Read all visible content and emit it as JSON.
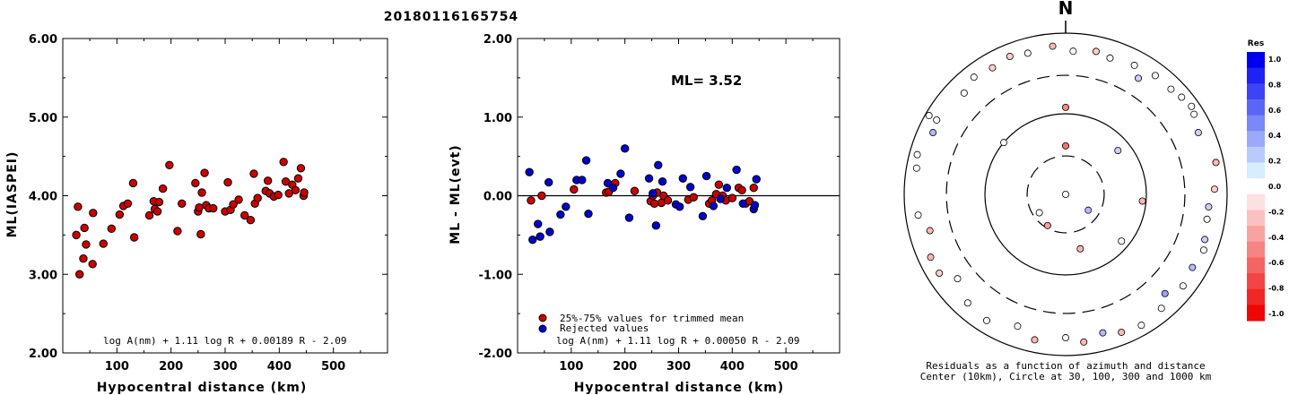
{
  "title": "20180116165754",
  "chart_data": [
    {
      "type": "scatter",
      "xlabel": "Hypocentral distance (km)",
      "ylabel": "ML(IASPEI)",
      "xlim": [
        0,
        600
      ],
      "ylim": [
        2.0,
        6.0
      ],
      "xticks": [
        "100",
        "200",
        "300",
        "400",
        "500"
      ],
      "yticks": [
        "2.00",
        "3.00",
        "4.00",
        "5.00",
        "6.00"
      ],
      "formula": "log A(nm) + 1.11 log R + 0.00189 R - 2.09",
      "color": "#cc0000",
      "points": [
        [
          25,
          3.5
        ],
        [
          28,
          3.86
        ],
        [
          31,
          3.0
        ],
        [
          38,
          3.2
        ],
        [
          40,
          3.59
        ],
        [
          43,
          3.38
        ],
        [
          55,
          3.13
        ],
        [
          56,
          3.78
        ],
        [
          75,
          3.39
        ],
        [
          90,
          3.58
        ],
        [
          105,
          3.76
        ],
        [
          112,
          3.87
        ],
        [
          120,
          3.9
        ],
        [
          130,
          4.16
        ],
        [
          132,
          3.47
        ],
        [
          160,
          3.75
        ],
        [
          168,
          3.93
        ],
        [
          170,
          3.83
        ],
        [
          175,
          3.8
        ],
        [
          178,
          3.92
        ],
        [
          185,
          4.09
        ],
        [
          197,
          4.39
        ],
        [
          212,
          3.55
        ],
        [
          220,
          3.9
        ],
        [
          245,
          4.16
        ],
        [
          250,
          3.8
        ],
        [
          252,
          3.85
        ],
        [
          255,
          3.51
        ],
        [
          257,
          4.04
        ],
        [
          262,
          4.29
        ],
        [
          265,
          3.88
        ],
        [
          270,
          3.84
        ],
        [
          278,
          3.84
        ],
        [
          300,
          3.8
        ],
        [
          305,
          4.17
        ],
        [
          310,
          3.82
        ],
        [
          315,
          3.89
        ],
        [
          325,
          3.95
        ],
        [
          336,
          3.75
        ],
        [
          347,
          3.69
        ],
        [
          353,
          4.28
        ],
        [
          355,
          3.9
        ],
        [
          360,
          3.97
        ],
        [
          375,
          4.06
        ],
        [
          379,
          4.19
        ],
        [
          382,
          4.03
        ],
        [
          390,
          3.99
        ],
        [
          398,
          4.01
        ],
        [
          408,
          4.43
        ],
        [
          412,
          4.18
        ],
        [
          418,
          4.03
        ],
        [
          424,
          4.14
        ],
        [
          430,
          4.07
        ],
        [
          435,
          4.22
        ],
        [
          440,
          4.35
        ],
        [
          445,
          4.0
        ],
        [
          446,
          4.04
        ]
      ]
    },
    {
      "type": "scatter",
      "xlabel": "Hypocentral distance (km)",
      "ylabel": "ML - ML(evt)",
      "xlim": [
        0,
        600
      ],
      "ylim": [
        -2.0,
        2.0
      ],
      "xticks": [
        "100",
        "200",
        "300",
        "400",
        "500"
      ],
      "yticks": [
        "-2.00",
        "-1.00",
        "0.00",
        "1.00",
        "2.00"
      ],
      "annotation": "ML= 3.52",
      "formula": "log A(nm) + 1.11 log R + 0.00050 R - 2.09",
      "legend": [
        "25%-75% values for trimmed mean",
        "Rejected values"
      ],
      "series": [
        {
          "name": "25%-75% values for trimmed mean",
          "color": "#cc0000",
          "points": [
            [
              25,
              -0.06
            ],
            [
              45,
              0.0
            ],
            [
              105,
              0.08
            ],
            [
              165,
              0.04
            ],
            [
              170,
              0.05
            ],
            [
              182,
              0.16
            ],
            [
              218,
              0.06
            ],
            [
              248,
              -0.07
            ],
            [
              252,
              0.0
            ],
            [
              255,
              -0.1
            ],
            [
              260,
              0.04
            ],
            [
              268,
              -0.09
            ],
            [
              272,
              0.0
            ],
            [
              280,
              -0.06
            ],
            [
              318,
              -0.05
            ],
            [
              328,
              -0.02
            ],
            [
              357,
              -0.1
            ],
            [
              362,
              -0.06
            ],
            [
              370,
              0.02
            ],
            [
              375,
              0.14
            ],
            [
              382,
              0.0
            ],
            [
              388,
              -0.06
            ],
            [
              400,
              -0.03
            ],
            [
              412,
              0.1
            ],
            [
              418,
              0.07
            ],
            [
              425,
              -0.1
            ],
            [
              432,
              -0.07
            ],
            [
              440,
              0.1
            ]
          ]
        },
        {
          "name": "Rejected values",
          "color": "#0000cc",
          "points": [
            [
              22,
              0.3
            ],
            [
              28,
              -0.56
            ],
            [
              38,
              -0.36
            ],
            [
              42,
              -0.52
            ],
            [
              58,
              0.17
            ],
            [
              60,
              -0.46
            ],
            [
              80,
              -0.24
            ],
            [
              90,
              -0.14
            ],
            [
              110,
              0.2
            ],
            [
              120,
              0.2
            ],
            [
              128,
              0.45
            ],
            [
              132,
              -0.23
            ],
            [
              168,
              0.16
            ],
            [
              178,
              0.1
            ],
            [
              192,
              0.28
            ],
            [
              200,
              0.6
            ],
            [
              208,
              -0.28
            ],
            [
              245,
              0.22
            ],
            [
              252,
              0.03
            ],
            [
              258,
              -0.38
            ],
            [
              262,
              0.39
            ],
            [
              270,
              0.18
            ],
            [
              295,
              -0.11
            ],
            [
              302,
              -0.14
            ],
            [
              308,
              0.22
            ],
            [
              322,
              0.11
            ],
            [
              345,
              -0.26
            ],
            [
              352,
              0.25
            ],
            [
              365,
              -0.13
            ],
            [
              378,
              -0.04
            ],
            [
              390,
              0.1
            ],
            [
              408,
              0.33
            ],
            [
              420,
              -0.1
            ],
            [
              440,
              -0.17
            ],
            [
              442,
              -0.12
            ],
            [
              445,
              0.21
            ]
          ]
        }
      ]
    },
    {
      "type": "scatter",
      "subtype": "polar residual plot",
      "north_label": "N",
      "caption": "Residuals as a function of azimuth and distance",
      "caption2": "Center (10km), Circle at 30, 100, 300 and 1000 km",
      "rings_km": [
        10,
        30,
        100,
        300,
        1000
      ],
      "colorbar_title": "Res",
      "colorbar_ticks": [
        "1.0",
        "0.8",
        "0.6",
        "0.4",
        "0.2",
        "0.0",
        "-0.2",
        "-0.4",
        "-0.6",
        "-0.8",
        "-1.0"
      ],
      "colorbar_colors": [
        "#0000f0",
        "#1f22f2",
        "#3d44f4",
        "#5c66f6",
        "#7a88f8",
        "#99aafa",
        "#b8ccfc",
        "#d6eefe",
        "#ffffff",
        "#fde0e0",
        "#fbc1c1",
        "#f9a2a2",
        "#f78383",
        "#f56464",
        "#f34545",
        "#f12626",
        "#ef0707"
      ],
      "stations": [
        {
          "az": 0,
          "dist_km": 40,
          "res": -0.6
        },
        {
          "az": 0,
          "dist_km": 120,
          "res": -0.5
        },
        {
          "az": 180,
          "dist_km": 8,
          "res": 0.0
        },
        {
          "az": 235,
          "dist_km": 25,
          "res": 0.0
        },
        {
          "az": 210,
          "dist_km": 28,
          "res": -0.4
        },
        {
          "az": 125,
          "dist_km": 22,
          "res": 0.3
        },
        {
          "az": 165,
          "dist_km": 50,
          "res": -0.3
        },
        {
          "az": 50,
          "dist_km": 70,
          "res": 0.2
        },
        {
          "az": 130,
          "dist_km": 80,
          "res": 0.0
        },
        {
          "az": 95,
          "dist_km": 90,
          "res": -0.3
        },
        {
          "az": 310,
          "dist_km": 100,
          "res": 0.0
        },
        {
          "az": 355,
          "dist_km": 700,
          "res": -0.3
        },
        {
          "az": 3,
          "dist_km": 600,
          "res": 0.0
        },
        {
          "az": 12,
          "dist_km": 650,
          "res": -0.2
        },
        {
          "az": 18,
          "dist_km": 600,
          "res": 0.0
        },
        {
          "az": 28,
          "dist_km": 650,
          "res": 0.0
        },
        {
          "az": 32,
          "dist_km": 500,
          "res": 0.2
        },
        {
          "az": 37,
          "dist_km": 700,
          "res": 0.0
        },
        {
          "az": 45,
          "dist_km": 700,
          "res": 0.0
        },
        {
          "az": 50,
          "dist_km": 750,
          "res": 0.0
        },
        {
          "az": 345,
          "dist_km": 650,
          "res": 0.0
        },
        {
          "az": 338,
          "dist_km": 700,
          "res": -0.2
        },
        {
          "az": 330,
          "dist_km": 650,
          "res": -0.2
        },
        {
          "az": 322,
          "dist_km": 700,
          "res": 0.0
        },
        {
          "az": 315,
          "dist_km": 600,
          "res": 0.0
        },
        {
          "az": 300,
          "dist_km": 700,
          "res": 0.0
        },
        {
          "az": 295,
          "dist_km": 650,
          "res": 0.3
        },
        {
          "az": 285,
          "dist_km": 800,
          "res": 0.0
        },
        {
          "az": 280,
          "dist_km": 750,
          "res": 0.0
        },
        {
          "az": 262,
          "dist_km": 700,
          "res": 0.0
        },
        {
          "az": 255,
          "dist_km": 550,
          "res": -0.3
        },
        {
          "az": 245,
          "dist_km": 700,
          "res": -0.3
        },
        {
          "az": 238,
          "dist_km": 700,
          "res": -0.2
        },
        {
          "az": 232,
          "dist_km": 500,
          "res": 0.0
        },
        {
          "az": 222,
          "dist_km": 650,
          "res": 0.0
        },
        {
          "az": 212,
          "dist_km": 700,
          "res": 0.0
        },
        {
          "az": 200,
          "dist_km": 550,
          "res": 0.0
        },
        {
          "az": 192,
          "dist_km": 700,
          "res": -0.3
        },
        {
          "az": 180,
          "dist_km": 600,
          "res": 0.0
        },
        {
          "az": 173,
          "dist_km": 700,
          "res": -0.3
        },
        {
          "az": 165,
          "dist_km": 600,
          "res": 0.3
        },
        {
          "az": 158,
          "dist_km": 700,
          "res": -0.3
        },
        {
          "az": 150,
          "dist_km": 750,
          "res": 0.0
        },
        {
          "az": 140,
          "dist_km": 700,
          "res": 0.0
        },
        {
          "az": 135,
          "dist_km": 550,
          "res": 0.4
        },
        {
          "az": 128,
          "dist_km": 700,
          "res": 0.0
        },
        {
          "az": 120,
          "dist_km": 650,
          "res": 0.3
        },
        {
          "az": 112,
          "dist_km": 700,
          "res": 0.0
        },
        {
          "az": 108,
          "dist_km": 650,
          "res": 0.2
        },
        {
          "az": 100,
          "dist_km": 600,
          "res": 0.0
        },
        {
          "az": 95,
          "dist_km": 600,
          "res": 0.2
        },
        {
          "az": 88,
          "dist_km": 700,
          "res": -0.2
        },
        {
          "az": 78,
          "dist_km": 800,
          "res": -0.3
        },
        {
          "az": 65,
          "dist_km": 650,
          "res": 0.2
        },
        {
          "az": 55,
          "dist_km": 800,
          "res": 0.0
        },
        {
          "az": 58,
          "dist_km": 750,
          "res": 0.0
        },
        {
          "az": 300,
          "dist_km": 900,
          "res": 0.0
        }
      ]
    }
  ]
}
